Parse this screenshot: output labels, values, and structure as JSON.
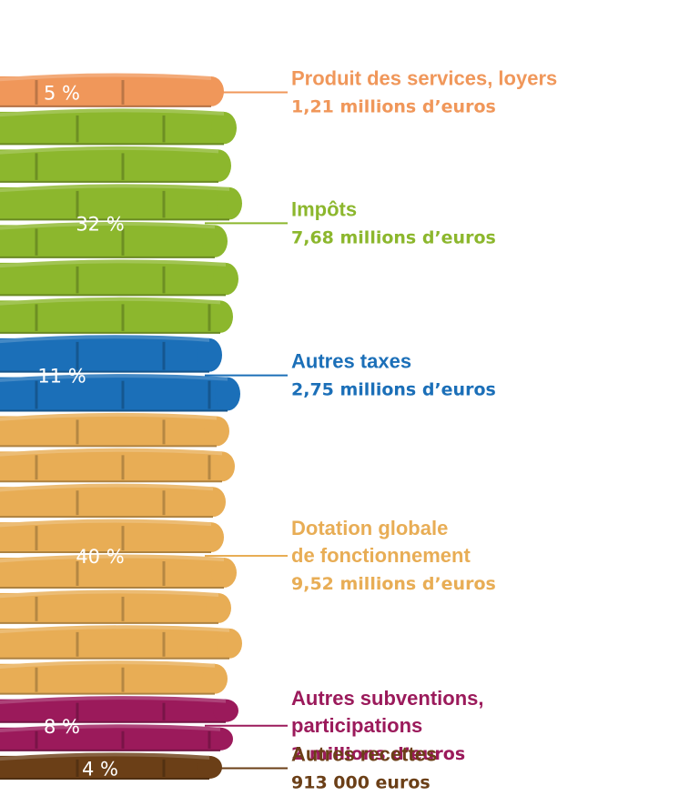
{
  "chart_data": {
    "type": "bar",
    "title": "",
    "unit": "%",
    "segments": [
      {
        "percent": 5,
        "percent_label": "5 %",
        "name_lines": [
          "Produit des services, loyers"
        ],
        "amount": "1,21 millions d’euros",
        "color": "#f0975a"
      },
      {
        "percent": 32,
        "percent_label": "32 %",
        "name_lines": [
          "Impôts"
        ],
        "amount": "7,68 millions d’euros",
        "color": "#8cb72d"
      },
      {
        "percent": 11,
        "percent_label": "11 %",
        "name_lines": [
          "Autres taxes"
        ],
        "amount": "2,75 millions d’euros",
        "color": "#1b6fb8"
      },
      {
        "percent": 40,
        "percent_label": "40 %",
        "name_lines": [
          "Dotation globale",
          "de fonctionnement"
        ],
        "amount": "9,52 millions d’euros",
        "color": "#e8ad55"
      },
      {
        "percent": 8,
        "percent_label": "8 %",
        "name_lines": [
          "Autres subventions,",
          "participations"
        ],
        "amount": "2 millions d’euros",
        "color": "#9b1a5b"
      },
      {
        "percent": 4,
        "percent_label": "4 %",
        "name_lines": [
          "Autres recettes"
        ],
        "amount": "913 000 euros",
        "color": "#6b3f17"
      }
    ]
  }
}
